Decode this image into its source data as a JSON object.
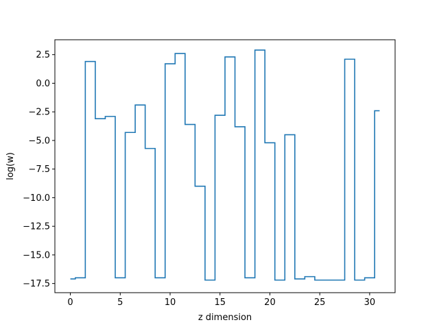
{
  "chart_data": {
    "type": "line",
    "drawstyle": "steps-mid",
    "xlabel": "z dimension",
    "ylabel": "log(w)",
    "xlim": [
      -1.55,
      32.55
    ],
    "ylim": [
      -18.3,
      3.8
    ],
    "xticks": [
      0,
      5,
      10,
      15,
      20,
      25,
      30
    ],
    "yticks": [
      2.5,
      0.0,
      -2.5,
      -5.0,
      -7.5,
      -10.0,
      -12.5,
      -15.0,
      -17.5
    ],
    "grid": false,
    "series": [
      {
        "color": "#1f77b4",
        "x": [
          0,
          1,
          2,
          3,
          4,
          5,
          6,
          7,
          8,
          9,
          10,
          11,
          12,
          13,
          14,
          15,
          16,
          17,
          18,
          19,
          20,
          21,
          22,
          23,
          24,
          25,
          26,
          27,
          28,
          29,
          30,
          31
        ],
        "y": [
          -17.1,
          -17.0,
          1.9,
          -3.1,
          -2.9,
          -17.0,
          -4.3,
          -1.9,
          -5.7,
          -17.0,
          1.7,
          2.6,
          -3.6,
          -9.0,
          -17.2,
          -2.8,
          2.3,
          -3.8,
          -17.0,
          2.9,
          -5.2,
          -17.2,
          -4.5,
          -17.1,
          -16.9,
          -17.2,
          -17.2,
          -17.2,
          2.1,
          -17.2,
          -17.0,
          -2.4
        ]
      }
    ]
  }
}
